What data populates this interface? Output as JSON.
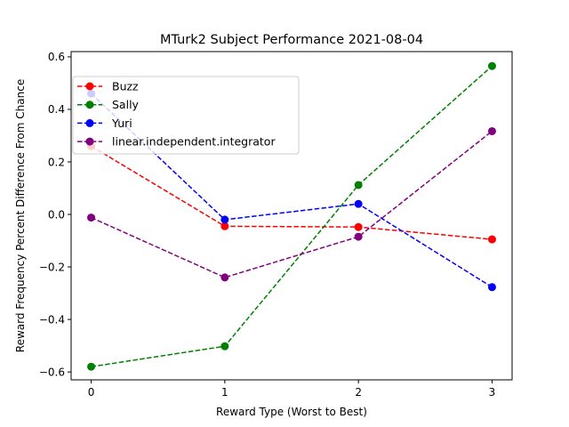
{
  "chart_data": {
    "type": "line",
    "title": "MTurk2 Subject Performance 2021-08-04",
    "xlabel": "Reward Type (Worst to Best)",
    "ylabel": "Reward Frequency Percent Difference From Chance",
    "x": [
      0,
      1,
      2,
      3
    ],
    "x_tick_labels": [
      "0",
      "1",
      "2",
      "3"
    ],
    "xlim": [
      -0.15,
      3.15
    ],
    "ylim": [
      -0.63,
      0.62
    ],
    "y_ticks": [
      -0.6,
      -0.4,
      -0.2,
      0.0,
      0.2,
      0.4,
      0.6
    ],
    "y_tick_labels": [
      "−0.6",
      "−0.4",
      "−0.2",
      "0.0",
      "0.2",
      "0.4",
      "0.6"
    ],
    "grid": false,
    "legend_position": "upper-left",
    "line_style": "dashed",
    "marker": "circle",
    "series": [
      {
        "name": "Buzz",
        "color": "#ff0000",
        "values": [
          0.26,
          -0.045,
          -0.048,
          -0.095
        ]
      },
      {
        "name": "Sally",
        "color": "#008000",
        "values": [
          -0.58,
          -0.502,
          0.112,
          0.565
        ]
      },
      {
        "name": "Yuri",
        "color": "#0000ff",
        "values": [
          0.46,
          -0.02,
          0.04,
          -0.277
        ]
      },
      {
        "name": "linear.independent.integrator",
        "color": "#800080",
        "values": [
          -0.012,
          -0.24,
          -0.085,
          0.317
        ]
      }
    ]
  }
}
